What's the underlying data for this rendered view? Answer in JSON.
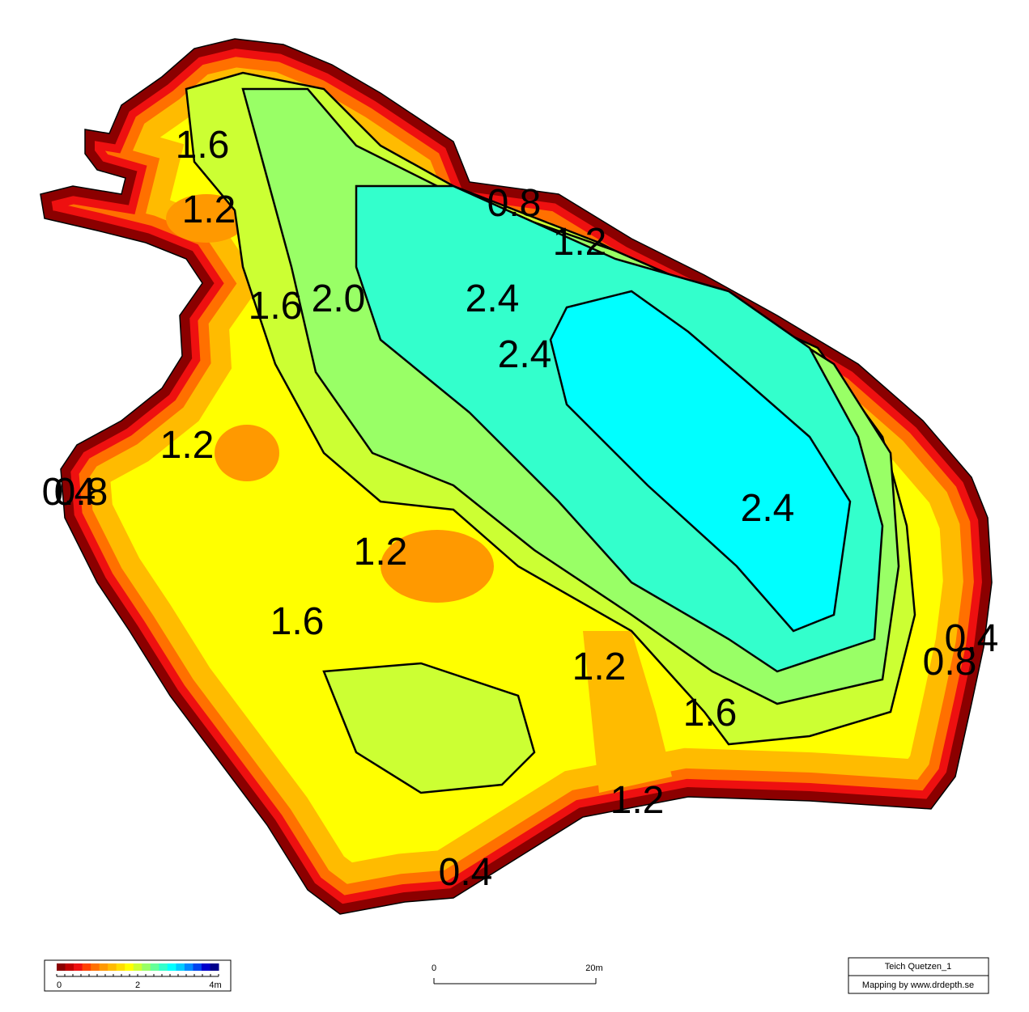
{
  "map": {
    "contour_labels": [
      "1.6",
      "1.2",
      "0.8",
      "1.2",
      "1.6",
      "2.0",
      "2.4",
      "2.4",
      "1.2",
      "0.4",
      "0.8",
      "2.4",
      "1.2",
      "1.6",
      "0.4",
      "0.8",
      "1.2",
      "1.6",
      "1.2",
      "0.4"
    ],
    "legend": {
      "colors": [
        "#8b0000",
        "#c00000",
        "#ee1010",
        "#ff4000",
        "#ff7000",
        "#ff9900",
        "#ffbb00",
        "#ffdd00",
        "#ffff00",
        "#ccff33",
        "#99ff66",
        "#66ff99",
        "#33ffcc",
        "#00ffff",
        "#00ccff",
        "#0088ff",
        "#0044ee",
        "#0000cc",
        "#00008b"
      ],
      "ticks": [
        "0",
        "2",
        "4m"
      ]
    },
    "scale_bar": {
      "ticks": [
        "0",
        "20m"
      ]
    },
    "info": {
      "title": "Teich Quetzen_1",
      "credit": "Mapping by www.drdepth.se"
    }
  }
}
